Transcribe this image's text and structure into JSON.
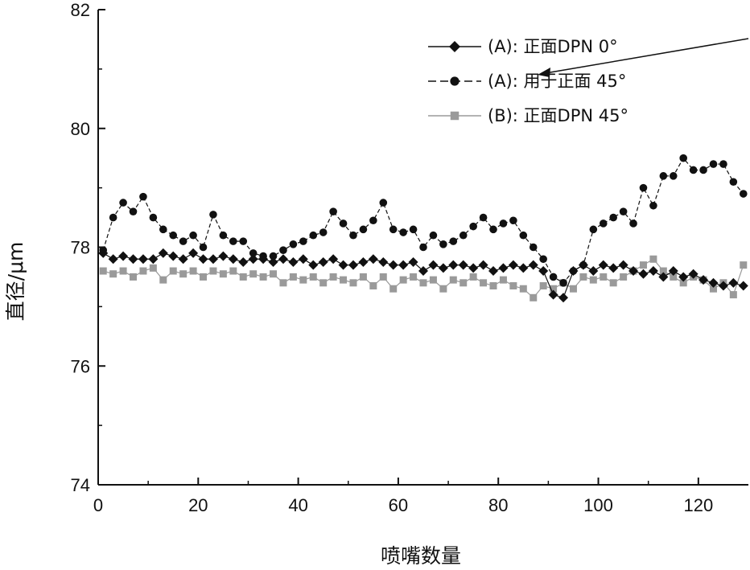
{
  "chart_data": {
    "type": "line",
    "title": "",
    "xlabel": "喷嘴数量",
    "ylabel": "直径/μm",
    "xlim": [
      0,
      130
    ],
    "ylim": [
      74,
      82
    ],
    "xticks": [
      0,
      20,
      40,
      60,
      80,
      100,
      120
    ],
    "yticks": [
      74,
      76,
      78,
      80,
      82
    ],
    "grid": false,
    "legend_position": "top-right",
    "series": [
      {
        "name": "(A): 正面DPN 0°",
        "color": "#111111",
        "marker": "diamond",
        "line": "solid",
        "x": [
          1,
          3,
          5,
          7,
          9,
          11,
          13,
          15,
          17,
          19,
          21,
          23,
          25,
          27,
          29,
          31,
          33,
          35,
          37,
          39,
          41,
          43,
          45,
          47,
          49,
          51,
          53,
          55,
          57,
          59,
          61,
          63,
          65,
          67,
          69,
          71,
          73,
          75,
          77,
          79,
          81,
          83,
          85,
          87,
          89,
          91,
          93,
          95,
          97,
          99,
          101,
          103,
          105,
          107,
          109,
          111,
          113,
          115,
          117,
          119,
          121,
          123,
          125,
          127,
          129
        ],
        "values": [
          77.9,
          77.8,
          77.85,
          77.8,
          77.8,
          77.8,
          77.9,
          77.85,
          77.8,
          77.9,
          77.8,
          77.8,
          77.85,
          77.8,
          77.75,
          77.8,
          77.8,
          77.75,
          77.8,
          77.75,
          77.8,
          77.7,
          77.75,
          77.8,
          77.7,
          77.7,
          77.75,
          77.8,
          77.75,
          77.7,
          77.7,
          77.75,
          77.6,
          77.7,
          77.65,
          77.7,
          77.7,
          77.65,
          77.7,
          77.6,
          77.65,
          77.7,
          77.65,
          77.7,
          77.6,
          77.2,
          77.15,
          77.6,
          77.7,
          77.6,
          77.7,
          77.65,
          77.7,
          77.6,
          77.55,
          77.6,
          77.5,
          77.6,
          77.5,
          77.55,
          77.45,
          77.4,
          77.35,
          77.4,
          77.35
        ]
      },
      {
        "name": "(A): 用于正面 45°",
        "color": "#111111",
        "marker": "circle",
        "line": "dashed",
        "x": [
          1,
          3,
          5,
          7,
          9,
          11,
          13,
          15,
          17,
          19,
          21,
          23,
          25,
          27,
          29,
          31,
          33,
          35,
          37,
          39,
          41,
          43,
          45,
          47,
          49,
          51,
          53,
          55,
          57,
          59,
          61,
          63,
          65,
          67,
          69,
          71,
          73,
          75,
          77,
          79,
          81,
          83,
          85,
          87,
          89,
          91,
          93,
          95,
          97,
          99,
          101,
          103,
          105,
          107,
          109,
          111,
          113,
          115,
          117,
          119,
          121,
          123,
          125,
          127,
          129
        ],
        "values": [
          77.95,
          78.5,
          78.75,
          78.6,
          78.85,
          78.5,
          78.3,
          78.2,
          78.1,
          78.2,
          78.0,
          78.55,
          78.2,
          78.1,
          78.1,
          77.9,
          77.85,
          77.85,
          77.95,
          78.05,
          78.1,
          78.2,
          78.25,
          78.6,
          78.4,
          78.2,
          78.3,
          78.45,
          78.75,
          78.3,
          78.25,
          78.3,
          78.0,
          78.2,
          78.05,
          78.1,
          78.2,
          78.35,
          78.5,
          78.3,
          78.4,
          78.45,
          78.2,
          78.0,
          77.8,
          77.5,
          77.4,
          77.6,
          77.7,
          78.3,
          78.4,
          78.5,
          78.6,
          78.4,
          79.0,
          78.7,
          79.2,
          79.2,
          79.5,
          79.3,
          79.3,
          79.4,
          79.4,
          79.1,
          78.9
        ]
      },
      {
        "name": "(B): 正面DPN  45°",
        "color": "#9a9a9a",
        "marker": "square",
        "line": "solid",
        "x": [
          1,
          3,
          5,
          7,
          9,
          11,
          13,
          15,
          17,
          19,
          21,
          23,
          25,
          27,
          29,
          31,
          33,
          35,
          37,
          39,
          41,
          43,
          45,
          47,
          49,
          51,
          53,
          55,
          57,
          59,
          61,
          63,
          65,
          67,
          69,
          71,
          73,
          75,
          77,
          79,
          81,
          83,
          85,
          87,
          89,
          91,
          93,
          95,
          97,
          99,
          101,
          103,
          105,
          107,
          109,
          111,
          113,
          115,
          117,
          119,
          121,
          123,
          125,
          127,
          129
        ],
        "values": [
          77.6,
          77.55,
          77.6,
          77.5,
          77.6,
          77.65,
          77.45,
          77.6,
          77.55,
          77.6,
          77.5,
          77.6,
          77.55,
          77.6,
          77.5,
          77.55,
          77.5,
          77.55,
          77.4,
          77.5,
          77.45,
          77.5,
          77.4,
          77.5,
          77.45,
          77.4,
          77.5,
          77.35,
          77.5,
          77.3,
          77.45,
          77.5,
          77.4,
          77.45,
          77.3,
          77.45,
          77.4,
          77.5,
          77.4,
          77.35,
          77.45,
          77.35,
          77.3,
          77.15,
          77.35,
          77.3,
          77.4,
          77.3,
          77.5,
          77.45,
          77.5,
          77.4,
          77.5,
          77.6,
          77.7,
          77.8,
          77.6,
          77.5,
          77.4,
          77.5,
          77.45,
          77.3,
          77.4,
          77.2,
          77.7
        ]
      }
    ]
  }
}
